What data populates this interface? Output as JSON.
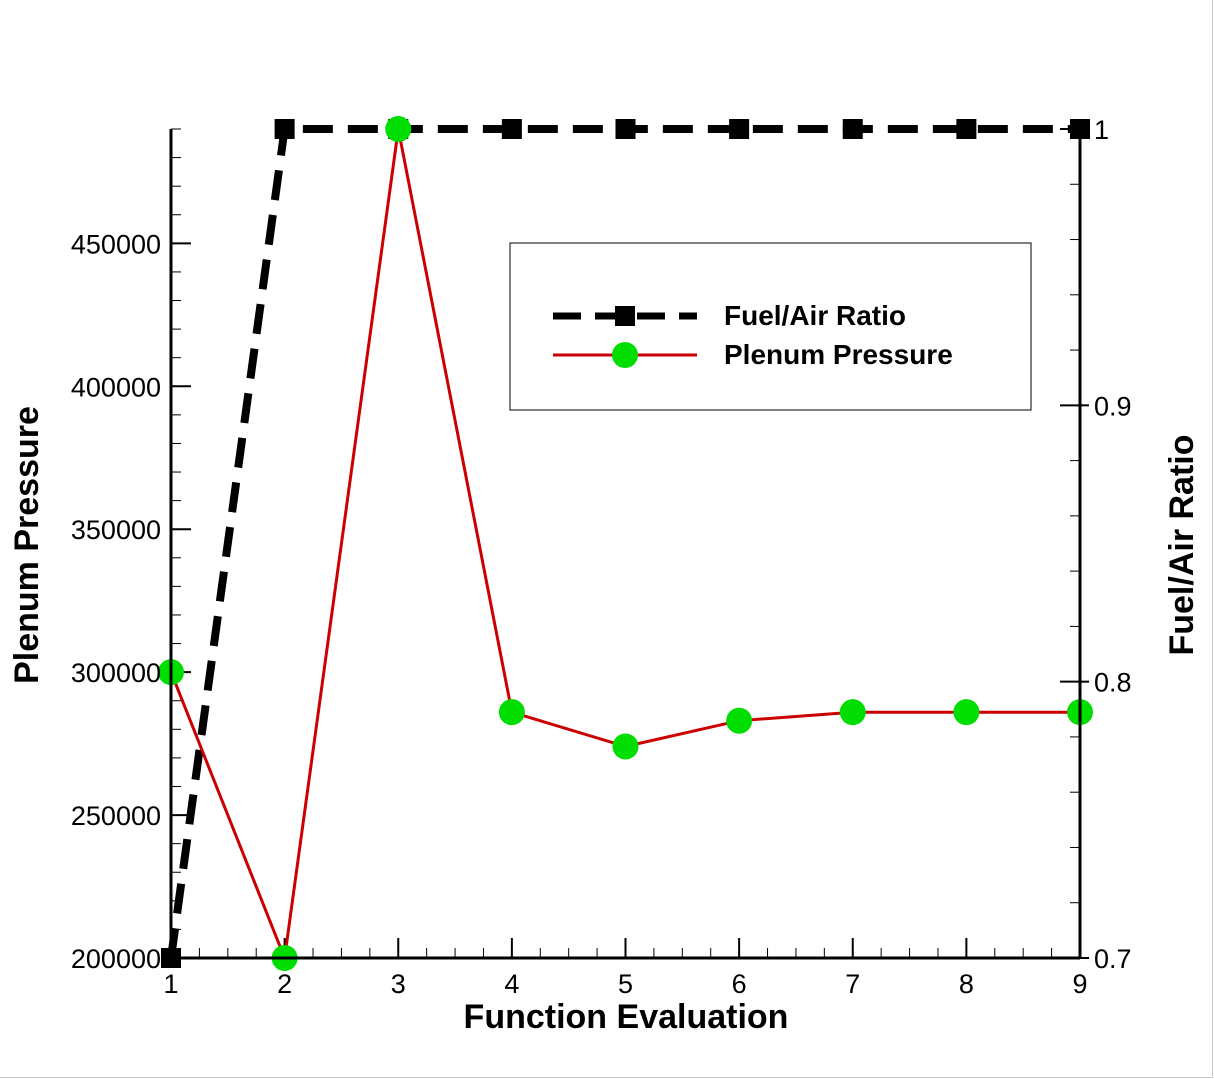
{
  "chart_data": {
    "type": "line",
    "xlabel": "Function Evaluation",
    "ylabel_left": "Plenum Pressure",
    "ylabel_right": "Fuel/Air Ratio",
    "x": [
      1,
      2,
      3,
      4,
      5,
      6,
      7,
      8,
      9
    ],
    "xlim": [
      1,
      9
    ],
    "ylim_left": [
      200000,
      490000
    ],
    "ylim_right": [
      0.7,
      1.0
    ],
    "x_ticks": [
      "1",
      "2",
      "3",
      "4",
      "5",
      "6",
      "7",
      "8",
      "9"
    ],
    "y_left_ticks": [
      "200000",
      "250000",
      "300000",
      "350000",
      "400000",
      "450000"
    ],
    "y_right_ticks": [
      "0.7",
      "0.8",
      "0.9",
      "1"
    ],
    "grid": false,
    "legend_position": "upper-right",
    "series": [
      {
        "name": "Fuel/Air Ratio",
        "axis": "right",
        "style": "dashed",
        "marker": "square",
        "color": "#000000",
        "values": [
          0.7,
          1.0,
          1.0,
          1.0,
          1.0,
          1.0,
          1.0,
          1.0,
          1.0
        ]
      },
      {
        "name": "Plenum Pressure",
        "axis": "left",
        "style": "solid",
        "marker": "circle",
        "color": "#cc0000",
        "marker_color": "#00dd00",
        "values": [
          300000,
          200000,
          490000,
          286000,
          274000,
          283000,
          286000,
          286000,
          286000
        ]
      }
    ]
  }
}
